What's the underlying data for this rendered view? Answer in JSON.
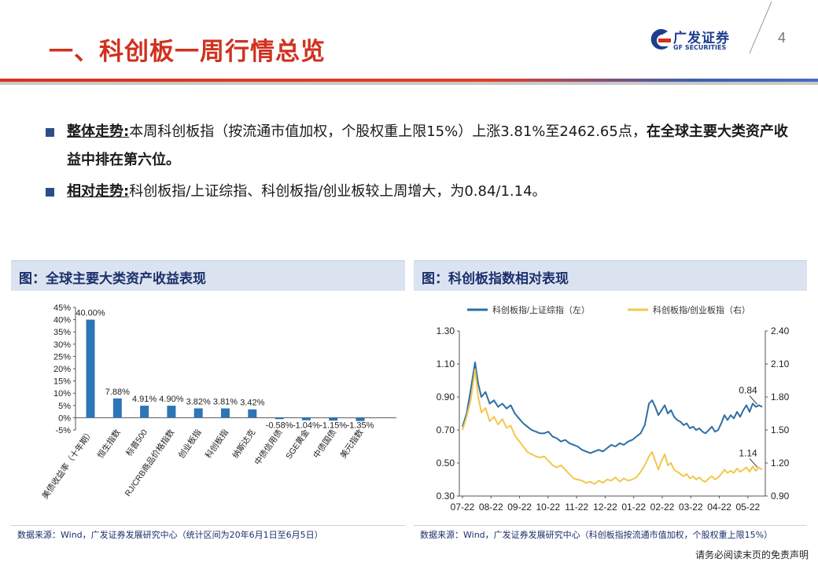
{
  "header": {
    "title": "一、科创板一周行情总览",
    "logo_name": "广发证券",
    "logo_sub": "GF SECURITIES",
    "page_number": "4"
  },
  "bullets": [
    {
      "head": "整体走势:",
      "text": "本周科创板指（按流通市值加权，个股权重上限15%）上涨3.81%至2462.65点，",
      "strong": "在全球主要大类资产收益中排在第六位。"
    },
    {
      "head": "相对走势:",
      "text": "科创板指/上证综指、科创板指/创业板较上周增大，为0.84/1.14。",
      "strong": ""
    }
  ],
  "left_panel": {
    "title": "图：全球主要大类资产收益表现",
    "source": "数据来源：Wind，广发证券发展研究中心（统计区间为20年6月1日至6月5日）"
  },
  "right_panel": {
    "title": "图：科创板指数相对表现",
    "source": "数据来源：Wind，广发证券发展研究中心（科创板指按流通市值加权，个股权重上限15%）"
  },
  "disclaimer": "请务必阅读末页的免责声明",
  "colors": {
    "accent_red": "#d0311f",
    "brand_blue": "#1d3e8e",
    "bar": "#2e75b6",
    "line_blue": "#2e6ea6",
    "line_gold": "#f2c84b"
  },
  "chart_data": [
    {
      "type": "bar",
      "categories": [
        "美债收益率（十年期）",
        "恒生指数",
        "标普500",
        "RJ/CRB商品价格指数",
        "创业板指",
        "科创板指",
        "纳斯达克",
        "中债信用债",
        "SGE黄金",
        "中债国债",
        "美元指数"
      ],
      "values": [
        40.0,
        7.88,
        4.91,
        4.9,
        3.82,
        3.81,
        3.42,
        -0.58,
        -1.04,
        -1.15,
        -1.35
      ],
      "data_labels": [
        "40.00%",
        "7.88%",
        "4.91%",
        "4.90%",
        "3.82%",
        "3.81%",
        "3.42%",
        "-0.58%",
        "-1.04%",
        "-1.15%",
        "-1.35%"
      ],
      "yticks": [
        "45%",
        "40%",
        "35%",
        "30%",
        "25%",
        "20%",
        "15%",
        "10%",
        "5%",
        "0%",
        "-5%"
      ],
      "ylim": [
        -5,
        45
      ]
    },
    {
      "type": "line",
      "x_ticks": [
        "07-22",
        "08-22",
        "09-22",
        "10-22",
        "11-22",
        "12-22",
        "01-22",
        "02-22",
        "03-22",
        "04-22",
        "05-22"
      ],
      "y_left_ticks": [
        "1.30",
        "1.10",
        "0.90",
        "0.70",
        "0.50",
        "0.30"
      ],
      "y_right_ticks": [
        "2.40",
        "2.10",
        "1.80",
        "1.50",
        "1.20",
        "0.90"
      ],
      "ylim_left": [
        0.3,
        1.3
      ],
      "ylim_right": [
        0.9,
        2.4
      ],
      "series": [
        {
          "name": "科创板指/上证综指（左）",
          "axis": "left",
          "end_label": "0.84",
          "points": [
            [
              0,
              0.72
            ],
            [
              4,
              0.8
            ],
            [
              8,
              0.95
            ],
            [
              12,
              1.11
            ],
            [
              15,
              0.98
            ],
            [
              18,
              0.9
            ],
            [
              22,
              0.93
            ],
            [
              26,
              0.86
            ],
            [
              30,
              0.88
            ],
            [
              34,
              0.84
            ],
            [
              38,
              0.86
            ],
            [
              42,
              0.83
            ],
            [
              46,
              0.85
            ],
            [
              50,
              0.8
            ],
            [
              54,
              0.77
            ],
            [
              58,
              0.74
            ],
            [
              62,
              0.72
            ],
            [
              66,
              0.7
            ],
            [
              70,
              0.69
            ],
            [
              74,
              0.68
            ],
            [
              78,
              0.68
            ],
            [
              82,
              0.69
            ],
            [
              86,
              0.66
            ],
            [
              90,
              0.65
            ],
            [
              94,
              0.63
            ],
            [
              98,
              0.64
            ],
            [
              102,
              0.62
            ],
            [
              106,
              0.61
            ],
            [
              110,
              0.6
            ],
            [
              114,
              0.58
            ],
            [
              118,
              0.57
            ],
            [
              122,
              0.56
            ],
            [
              126,
              0.57
            ],
            [
              130,
              0.58
            ],
            [
              134,
              0.57
            ],
            [
              138,
              0.59
            ],
            [
              142,
              0.61
            ],
            [
              146,
              0.6
            ],
            [
              150,
              0.62
            ],
            [
              154,
              0.61
            ],
            [
              158,
              0.63
            ],
            [
              162,
              0.64
            ],
            [
              166,
              0.66
            ],
            [
              170,
              0.68
            ],
            [
              174,
              0.73
            ],
            [
              178,
              0.86
            ],
            [
              181,
              0.88
            ],
            [
              184,
              0.84
            ],
            [
              187,
              0.79
            ],
            [
              190,
              0.82
            ],
            [
              193,
              0.85
            ],
            [
              196,
              0.8
            ],
            [
              199,
              0.82
            ],
            [
              202,
              0.78
            ],
            [
              205,
              0.76
            ],
            [
              208,
              0.75
            ],
            [
              211,
              0.73
            ],
            [
              214,
              0.74
            ],
            [
              217,
              0.71
            ],
            [
              220,
              0.72
            ],
            [
              223,
              0.7
            ],
            [
              226,
              0.71
            ],
            [
              229,
              0.69
            ],
            [
              232,
              0.68
            ],
            [
              235,
              0.7
            ],
            [
              238,
              0.72
            ],
            [
              241,
              0.69
            ],
            [
              244,
              0.7
            ],
            [
              247,
              0.74
            ],
            [
              250,
              0.79
            ],
            [
              253,
              0.76
            ],
            [
              256,
              0.79
            ],
            [
              259,
              0.77
            ],
            [
              262,
              0.81
            ],
            [
              265,
              0.78
            ],
            [
              268,
              0.82
            ],
            [
              271,
              0.85
            ],
            [
              274,
              0.81
            ],
            [
              277,
              0.86
            ],
            [
              280,
              0.84
            ],
            [
              283,
              0.85
            ],
            [
              286,
              0.84
            ]
          ]
        },
        {
          "name": "科创板指/创业板指（右）",
          "axis": "right",
          "end_label": "1.14",
          "points": [
            [
              0,
              1.5
            ],
            [
              4,
              1.62
            ],
            [
              8,
              1.78
            ],
            [
              12,
              2.05
            ],
            [
              15,
              1.8
            ],
            [
              18,
              1.66
            ],
            [
              22,
              1.7
            ],
            [
              26,
              1.58
            ],
            [
              30,
              1.62
            ],
            [
              34,
              1.55
            ],
            [
              38,
              1.6
            ],
            [
              42,
              1.52
            ],
            [
              46,
              1.54
            ],
            [
              50,
              1.45
            ],
            [
              54,
              1.4
            ],
            [
              58,
              1.35
            ],
            [
              62,
              1.3
            ],
            [
              66,
              1.28
            ],
            [
              70,
              1.26
            ],
            [
              74,
              1.25
            ],
            [
              78,
              1.26
            ],
            [
              82,
              1.22
            ],
            [
              86,
              1.18
            ],
            [
              90,
              1.16
            ],
            [
              94,
              1.18
            ],
            [
              98,
              1.14
            ],
            [
              102,
              1.1
            ],
            [
              106,
              1.06
            ],
            [
              110,
              1.05
            ],
            [
              114,
              1.04
            ],
            [
              118,
              1.02
            ],
            [
              122,
              1.03
            ],
            [
              126,
              1.01
            ],
            [
              130,
              1.04
            ],
            [
              134,
              1.02
            ],
            [
              138,
              1.05
            ],
            [
              142,
              1.04
            ],
            [
              146,
              1.07
            ],
            [
              150,
              1.03
            ],
            [
              154,
              1.06
            ],
            [
              158,
              1.04
            ],
            [
              162,
              1.05
            ],
            [
              166,
              1.07
            ],
            [
              170,
              1.12
            ],
            [
              174,
              1.18
            ],
            [
              178,
              1.26
            ],
            [
              181,
              1.3
            ],
            [
              184,
              1.22
            ],
            [
              187,
              1.14
            ],
            [
              190,
              1.22
            ],
            [
              193,
              1.28
            ],
            [
              196,
              1.18
            ],
            [
              199,
              1.2
            ],
            [
              202,
              1.14
            ],
            [
              205,
              1.12
            ],
            [
              208,
              1.1
            ],
            [
              211,
              1.08
            ],
            [
              214,
              1.1
            ],
            [
              217,
              1.06
            ],
            [
              220,
              1.08
            ],
            [
              223,
              1.05
            ],
            [
              226,
              1.07
            ],
            [
              229,
              1.04
            ],
            [
              232,
              1.03
            ],
            [
              235,
              1.06
            ],
            [
              238,
              1.08
            ],
            [
              241,
              1.05
            ],
            [
              244,
              1.07
            ],
            [
              247,
              1.1
            ],
            [
              250,
              1.14
            ],
            [
              253,
              1.11
            ],
            [
              256,
              1.13
            ],
            [
              259,
              1.11
            ],
            [
              262,
              1.15
            ],
            [
              265,
              1.12
            ],
            [
              268,
              1.14
            ],
            [
              271,
              1.16
            ],
            [
              274,
              1.12
            ],
            [
              277,
              1.17
            ],
            [
              280,
              1.13
            ],
            [
              283,
              1.16
            ],
            [
              286,
              1.14
            ]
          ]
        }
      ]
    }
  ]
}
